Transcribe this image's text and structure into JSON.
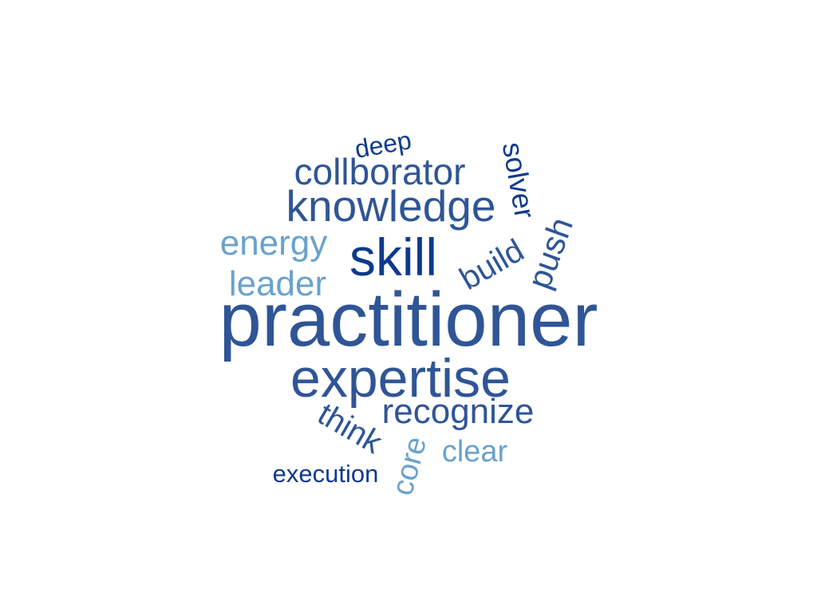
{
  "colors": {
    "dark_navy": "#0d3a8c",
    "steel_blue": "#2f5597",
    "light_blue": "#6aa2cc",
    "background": "#ffffff"
  },
  "words": [
    {
      "text": "practitioner",
      "color": "steel_blue",
      "rotation": 0
    },
    {
      "text": "expertise",
      "color": "steel_blue",
      "rotation": 0
    },
    {
      "text": "skill",
      "color": "dark_navy",
      "rotation": 0
    },
    {
      "text": "knowledge",
      "color": "steel_blue",
      "rotation": 0
    },
    {
      "text": "collborator",
      "color": "steel_blue",
      "rotation": 0
    },
    {
      "text": "recognize",
      "color": "steel_blue",
      "rotation": 0
    },
    {
      "text": "energy",
      "color": "light_blue",
      "rotation": 0
    },
    {
      "text": "leader",
      "color": "light_blue",
      "rotation": 0
    },
    {
      "text": "build",
      "color": "steel_blue",
      "rotation": -30
    },
    {
      "text": "push",
      "color": "steel_blue",
      "rotation": -70
    },
    {
      "text": "think",
      "color": "steel_blue",
      "rotation": 30
    },
    {
      "text": "solver",
      "color": "dark_navy",
      "rotation": 80
    },
    {
      "text": "core",
      "color": "light_blue",
      "rotation": -75
    },
    {
      "text": "clear",
      "color": "light_blue",
      "rotation": 0
    },
    {
      "text": "deep",
      "color": "dark_navy",
      "rotation": -10
    },
    {
      "text": "execution",
      "color": "dark_navy",
      "rotation": 0
    }
  ]
}
